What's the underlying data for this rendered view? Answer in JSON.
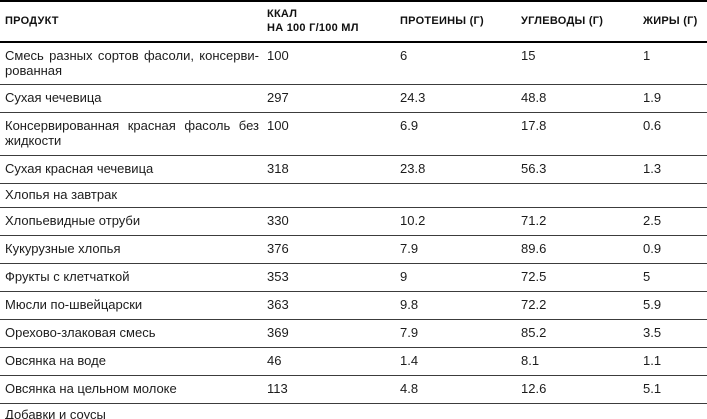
{
  "colors": {
    "text": "#1c1c1c",
    "header_border": "#000000",
    "row_border": "#3c3c3c",
    "background": "#ffffff"
  },
  "table": {
    "columns": [
      {
        "key": "product",
        "label": "ПРОДУКТ"
      },
      {
        "key": "kcal",
        "label": "ККАЛ\nНА 100 Г/100 МЛ"
      },
      {
        "key": "protein",
        "label": "ПРОТЕИНЫ (Г)"
      },
      {
        "key": "carbs",
        "label": "УГЛЕВОДЫ (Г)"
      },
      {
        "key": "fat",
        "label": "ЖИРЫ (Г)"
      }
    ],
    "rows": [
      {
        "type": "data",
        "product": "Смесь разных сортов фасоли, консерви-\nрованная",
        "kcal": "100",
        "protein": "6",
        "carbs": "15",
        "fat": "1"
      },
      {
        "type": "data",
        "product": "Сухая чечевица",
        "kcal": "297",
        "protein": "24.3",
        "carbs": "48.8",
        "fat": "1.9"
      },
      {
        "type": "data",
        "product": "Консервированная красная фасоль без\nжидкости",
        "kcal": "100",
        "protein": "6.9",
        "carbs": "17.8",
        "fat": "0.6"
      },
      {
        "type": "data",
        "product": "Сухая красная чечевица",
        "kcal": "318",
        "protein": "23.8",
        "carbs": "56.3",
        "fat": "1.3"
      },
      {
        "type": "section",
        "product": "Хлопья на завтрак"
      },
      {
        "type": "data",
        "product": "Хлопьевидные отруби",
        "kcal": "330",
        "protein": "10.2",
        "carbs": "71.2",
        "fat": "2.5"
      },
      {
        "type": "data",
        "product": "Кукурузные хлопья",
        "kcal": "376",
        "protein": "7.9",
        "carbs": "89.6",
        "fat": "0.9"
      },
      {
        "type": "data",
        "product": "Фрукты с клетчаткой",
        "kcal": "353",
        "protein": "9",
        "carbs": "72.5",
        "fat": "5"
      },
      {
        "type": "data",
        "product": "Мюсли по-швейцарски",
        "kcal": "363",
        "protein": "9.8",
        "carbs": "72.2",
        "fat": "5.9"
      },
      {
        "type": "data",
        "product": "Орехово-злаковая смесь",
        "kcal": "369",
        "protein": "7.9",
        "carbs": "85.2",
        "fat": "3.5"
      },
      {
        "type": "data",
        "product": "Овсянка на воде",
        "kcal": "46",
        "protein": "1.4",
        "carbs": "8.1",
        "fat": "1.1"
      },
      {
        "type": "data",
        "product": "Овсянка на цельном молоке",
        "kcal": "113",
        "protein": "4.8",
        "carbs": "12.6",
        "fat": "5.1"
      },
      {
        "type": "section",
        "product": "Добавки и соусы"
      }
    ]
  }
}
